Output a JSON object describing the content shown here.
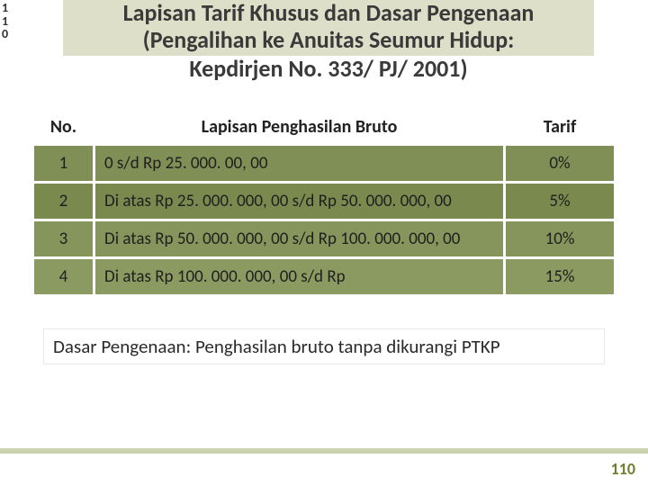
{
  "corner": {
    "l1": "1",
    "l2": "1",
    "l3": "0"
  },
  "title": {
    "line1": "Lapisan Tarif Khusus dan Dasar Pengenaan",
    "line2": "(Pengalihan ke Anuitas Seumur Hidup:",
    "line3": "Kepdirjen No. 333/ PJ/ 2001)"
  },
  "table": {
    "headers": {
      "no": "No.",
      "desc": "Lapisan Penghasilan Bruto",
      "tarif": "Tarif"
    },
    "rows": [
      {
        "no": "1",
        "desc": "0 s/d Rp 25. 000. 00, 00",
        "tarif": "0%"
      },
      {
        "no": "2",
        "desc": "Di atas Rp 25. 000. 000, 00 s/d Rp 50. 000. 000, 00",
        "tarif": "5%"
      },
      {
        "no": "3",
        "desc": "Di atas Rp 50. 000. 000, 00 s/d Rp 100. 000. 000, 00",
        "tarif": "10%"
      },
      {
        "no": "4",
        "desc": "Di atas Rp 100. 000. 000, 00 s/d Rp",
        "tarif": "15%"
      }
    ],
    "colors": {
      "header_bg": "#ffffff",
      "row_bgs": [
        "#808f55",
        "#7a8a4f",
        "#86955b",
        "#8b9a61"
      ],
      "text": "#1f1f1f"
    },
    "col_widths": {
      "no": 65,
      "tarif": 120
    },
    "font_size_header": 20,
    "font_size_cell": 19
  },
  "footer_note": "Dasar Pengenaan: Penghasilan bruto tanpa dikurangi PTKP",
  "page_number": "110",
  "palette": {
    "title_bg": "#dddfc8",
    "accent": "#6d7f2f",
    "background": "#ffffff"
  }
}
